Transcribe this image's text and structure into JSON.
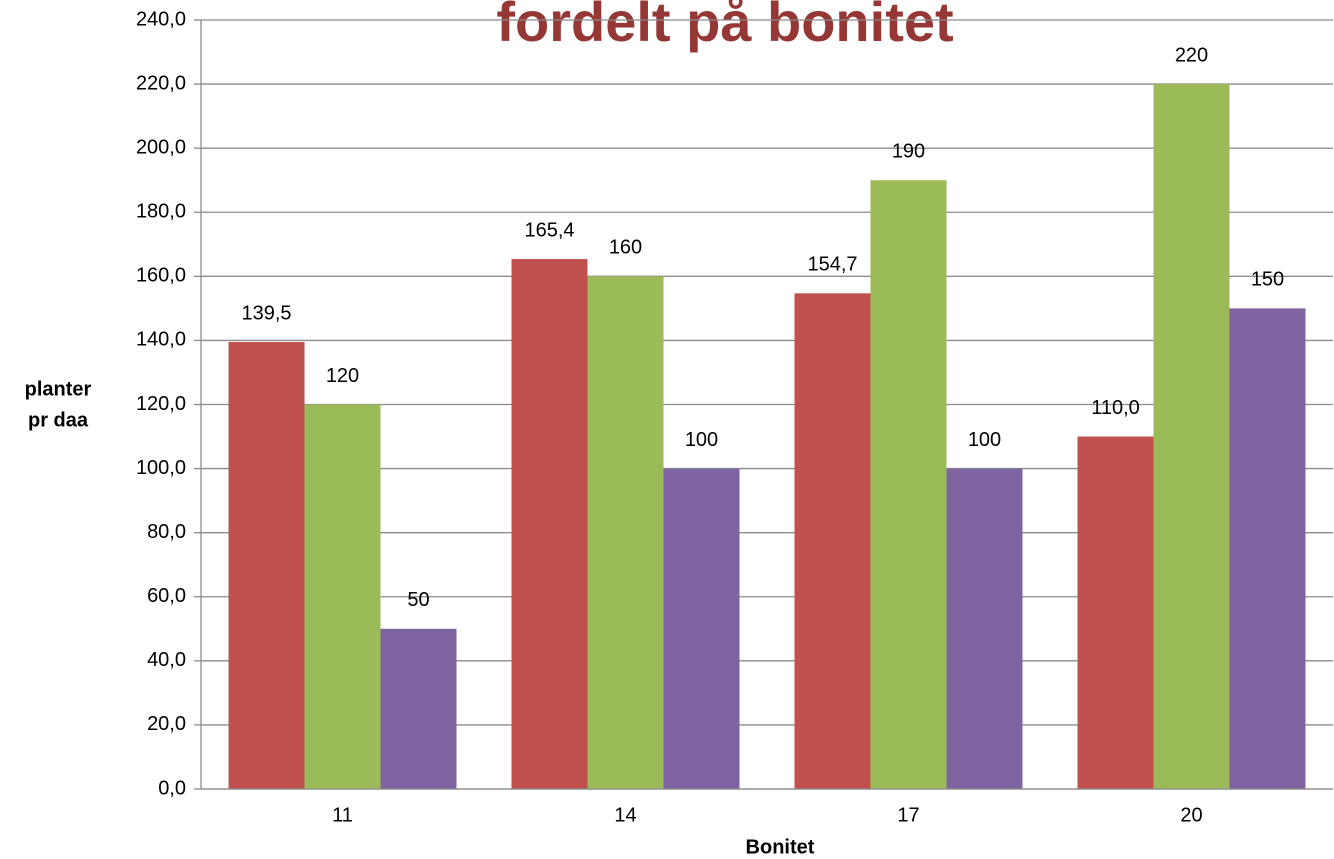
{
  "chart_data": {
    "type": "bar",
    "title": "fordelt på bonitet",
    "xlabel": "Bonitet",
    "ylabel": [
      "planter",
      "pr daa"
    ],
    "categories": [
      "11",
      "14",
      "17",
      "20"
    ],
    "series": [
      {
        "color": "#c0504d",
        "values": [
          139.5,
          165.4,
          154.7,
          110.0
        ],
        "value_labels": [
          "139,5",
          "165,4",
          "154,7",
          "110,0"
        ]
      },
      {
        "color": "#9bbb59",
        "values": [
          120,
          160,
          190,
          220
        ]
      },
      {
        "color": "#8064a2",
        "values": [
          50,
          100,
          100,
          150
        ]
      }
    ],
    "ylim": [
      0,
      240
    ],
    "yticks": [
      {
        "value": 0,
        "label": "0,0"
      },
      {
        "value": 20,
        "label": "20,0"
      },
      {
        "value": 40,
        "label": "40,0"
      },
      {
        "value": 60,
        "label": "60,0"
      },
      {
        "value": 80,
        "label": "80,0"
      },
      {
        "value": 100,
        "label": "100,0"
      },
      {
        "value": 120,
        "label": "120,0"
      },
      {
        "value": 140,
        "label": "140,0"
      },
      {
        "value": 160,
        "label": "160,0"
      },
      {
        "value": 180,
        "label": "180,0"
      },
      {
        "value": 200,
        "label": "200,0"
      },
      {
        "value": 220,
        "label": "220,0"
      },
      {
        "value": 240,
        "label": "240,0"
      }
    ],
    "grid": true
  }
}
